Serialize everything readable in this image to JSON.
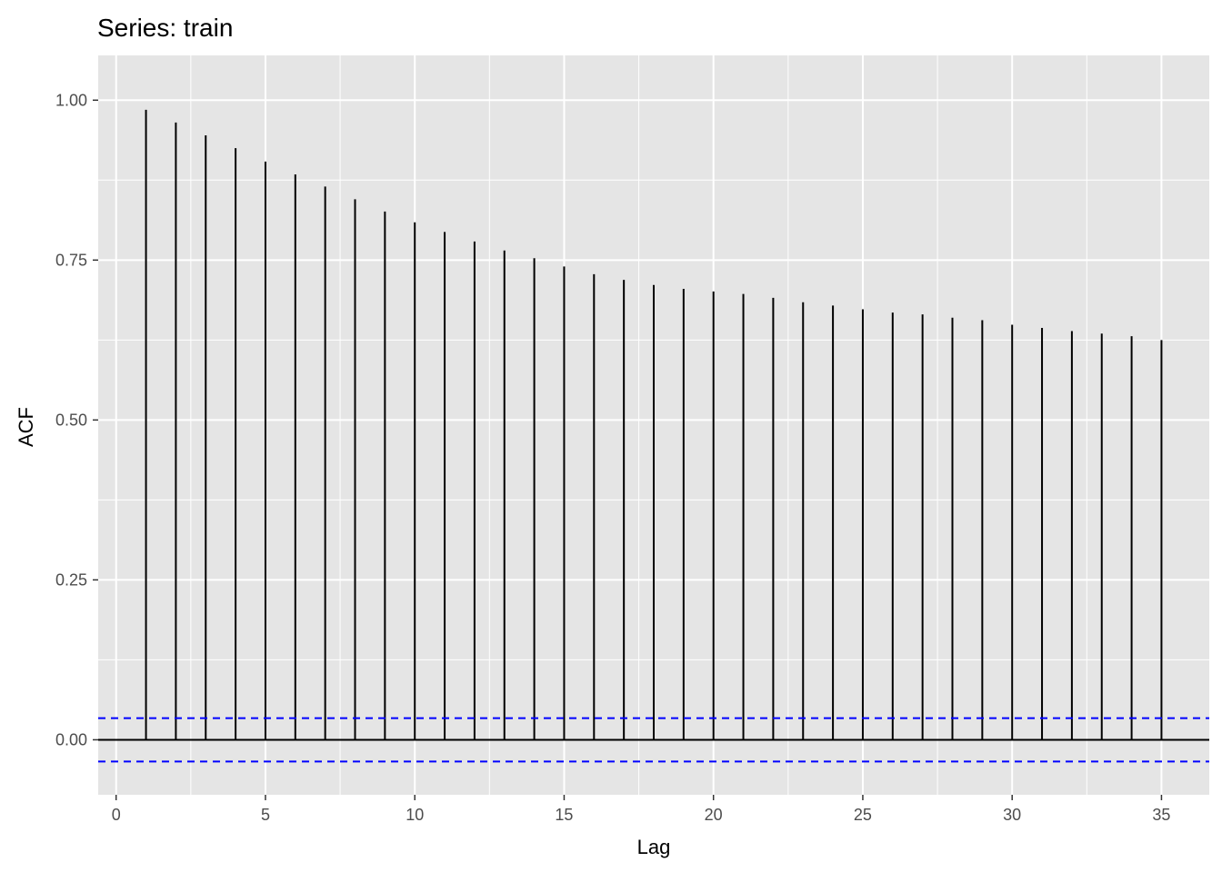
{
  "chart_data": {
    "type": "bar",
    "title": "Series: train",
    "xlabel": "Lag",
    "ylabel": "ACF",
    "x": [
      1,
      2,
      3,
      4,
      5,
      6,
      7,
      8,
      9,
      10,
      11,
      12,
      13,
      14,
      15,
      16,
      17,
      18,
      19,
      20,
      21,
      22,
      23,
      24,
      25,
      26,
      27,
      28,
      29,
      30,
      31,
      32,
      33,
      34,
      35
    ],
    "values": [
      0.985,
      0.965,
      0.945,
      0.925,
      0.904,
      0.884,
      0.865,
      0.845,
      0.826,
      0.809,
      0.794,
      0.779,
      0.765,
      0.753,
      0.74,
      0.728,
      0.719,
      0.711,
      0.705,
      0.701,
      0.697,
      0.691,
      0.684,
      0.679,
      0.673,
      0.668,
      0.665,
      0.66,
      0.656,
      0.649,
      0.644,
      0.639,
      0.635,
      0.631,
      0.625
    ],
    "confidence_bound": 0.0339,
    "xlim": [
      -0.6,
      36.6
    ],
    "ylim": [
      -0.086,
      1.07
    ],
    "x_ticks": [
      0,
      5,
      10,
      15,
      20,
      25,
      30,
      35
    ],
    "x_tick_labels": [
      "0",
      "5",
      "10",
      "15",
      "20",
      "25",
      "30",
      "35"
    ],
    "y_ticks": [
      0,
      0.25,
      0.5,
      0.75,
      1
    ],
    "y_tick_labels": [
      "0.00",
      "0.25",
      "0.50",
      "0.75",
      "1.00"
    ],
    "grid": true,
    "colors": {
      "panel_background": "#e5e5e5",
      "grid": "#ffffff",
      "bars": "#000000",
      "confidence_lines": "#0000ff",
      "zero_line": "#000000"
    }
  }
}
